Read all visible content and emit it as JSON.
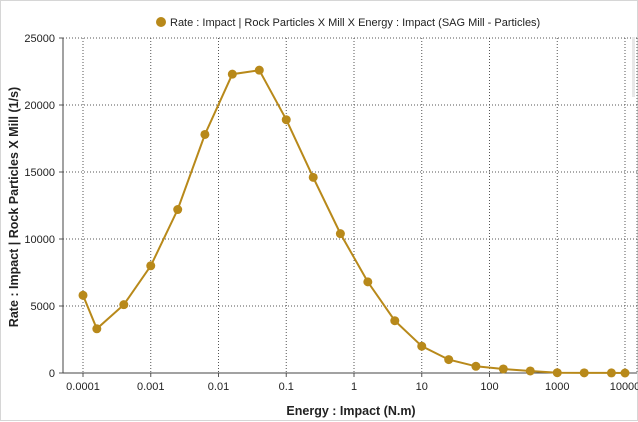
{
  "chart_data": {
    "type": "line",
    "legend": "Rate : Impact | Rock Particles X Mill X Energy : Impact (SAG Mill - Particles)",
    "legend_position": "top-center",
    "xlabel": "Energy : Impact (N.m)",
    "ylabel": "Rate : Impact  | Rock Particles X Mill (1/s)",
    "x_scale": "log",
    "xlim": [
      0.0001,
      10000
    ],
    "ylim": [
      0,
      25000
    ],
    "grid": true,
    "series_color": "#b8891a",
    "x_tick_labels": [
      "0.0001",
      "0.001",
      "0.01",
      "0.1",
      "1",
      "10",
      "100",
      "1000",
      "10000"
    ],
    "x_tick_values": [
      0.0001,
      0.001,
      0.01,
      0.1,
      1,
      10,
      100,
      1000,
      10000
    ],
    "y_ticks": [
      0,
      5000,
      10000,
      15000,
      20000,
      25000
    ],
    "series": [
      {
        "name": "Rate : Impact | Rock Particles X Mill X Energy : Impact (SAG Mill - Particles)",
        "x": [
          0.0001,
          0.00016,
          0.0004,
          0.001,
          0.0025,
          0.0063,
          0.016,
          0.04,
          0.1,
          0.25,
          0.63,
          1.6,
          4,
          10,
          25,
          63,
          160,
          400,
          1000,
          2500,
          6300,
          10000
        ],
        "y": [
          5800,
          3300,
          5100,
          8000,
          12200,
          17800,
          22300,
          22600,
          18900,
          14600,
          10400,
          6800,
          3900,
          2000,
          1000,
          500,
          300,
          150,
          20,
          10,
          5,
          0
        ]
      }
    ]
  }
}
